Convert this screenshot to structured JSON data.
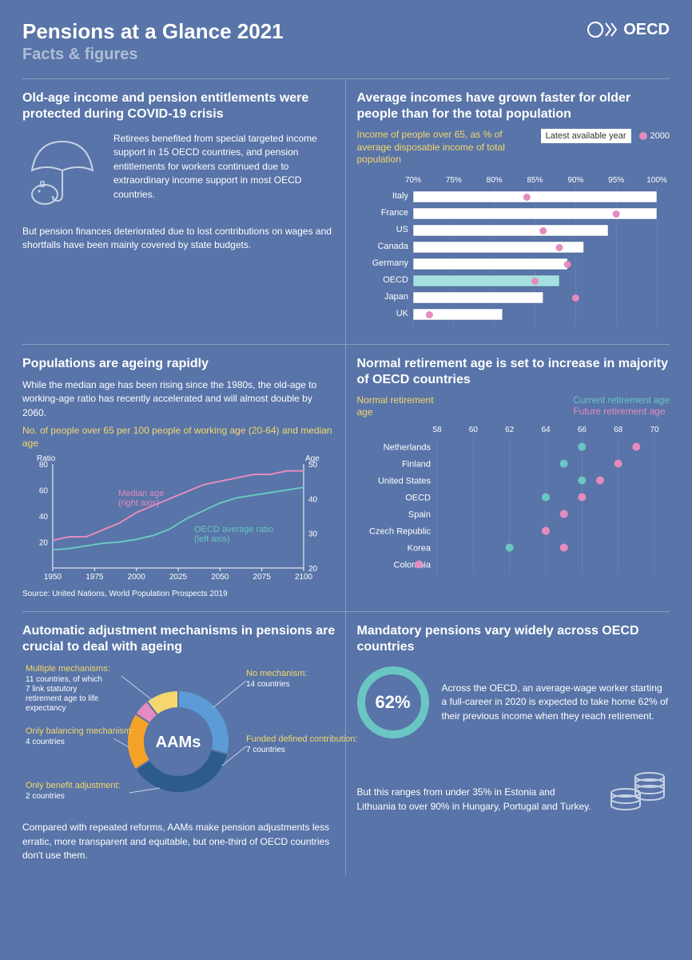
{
  "header": {
    "title": "Pensions at a Glance 2021",
    "subtitle": "Facts & figures",
    "logo_text": "OECD"
  },
  "sec1": {
    "title": "Old-age income and pension entitlements were protected during COVID-19 crisis",
    "para1": "Retirees benefited from special targeted income support in 15 OECD countries, and pension entitlements for workers continued due to extraordinary income support in most OECD countries.",
    "para2": "But pension finances deteriorated due to lost contributions on wages and shortfalls have been mainly covered by state budgets."
  },
  "sec2": {
    "title": "Average incomes have grown faster for older people than for the total population",
    "subtitle": "Income of people over 65, as % of average disposable income of total population",
    "legend_latest": "Latest available year",
    "legend_2000": "2000",
    "axis_ticks": [
      "70%",
      "75%",
      "80%",
      "85%",
      "90%",
      "95%",
      "100%"
    ],
    "axis_min": 70,
    "axis_max": 100,
    "rows": [
      {
        "label": "Italy",
        "latest": 100,
        "y2000": 84,
        "fill": "#ffffff"
      },
      {
        "label": "France",
        "latest": 100,
        "y2000": 95,
        "fill": "#ffffff"
      },
      {
        "label": "US",
        "latest": 94,
        "y2000": 86,
        "fill": "#ffffff"
      },
      {
        "label": "Canada",
        "latest": 91,
        "y2000": 88,
        "fill": "#ffffff"
      },
      {
        "label": "Germany",
        "latest": 89,
        "y2000": 89,
        "fill": "#ffffff"
      },
      {
        "label": "OECD",
        "latest": 88,
        "y2000": 85,
        "fill": "#a5e1e0"
      },
      {
        "label": "Japan",
        "latest": 86,
        "y2000": 90,
        "fill": "#ffffff"
      },
      {
        "label": "UK",
        "latest": 81,
        "y2000": 72,
        "fill": "#ffffff"
      }
    ],
    "dot_color": "#e58bbf",
    "border_color": "#4a6394"
  },
  "sec3": {
    "title": "Populations are ageing rapidly",
    "para": "While the median age has been rising since the 1980s, the old-age to working-age ratio has recently accelerated and will almost double by 2060.",
    "subtitle": "No. of people over 65 per 100 people of working age (20-64) and median age",
    "source": "Source: United Nations, World Population Prospects 2019",
    "left_label": "Ratio",
    "right_label": "Age",
    "x_ticks": [
      1950,
      1975,
      2000,
      2025,
      2050,
      2075,
      2100
    ],
    "left_ticks": [
      20,
      40,
      60,
      80
    ],
    "right_ticks": [
      20,
      30,
      40,
      50
    ],
    "line1_label": "Median age (right axis)",
    "line2_label": "OECD average ratio (left axis)",
    "line1_color": "#e58bbf",
    "line2_color": "#6ac6c2",
    "ratio_series": [
      [
        1950,
        14
      ],
      [
        1960,
        15
      ],
      [
        1970,
        17
      ],
      [
        1980,
        19
      ],
      [
        1990,
        20
      ],
      [
        2000,
        22
      ],
      [
        2010,
        25
      ],
      [
        2020,
        30
      ],
      [
        2030,
        38
      ],
      [
        2040,
        44
      ],
      [
        2050,
        50
      ],
      [
        2060,
        54
      ],
      [
        2070,
        56
      ],
      [
        2080,
        58
      ],
      [
        2090,
        60
      ],
      [
        2100,
        62
      ]
    ],
    "age_series": [
      [
        1950,
        28
      ],
      [
        1960,
        29
      ],
      [
        1970,
        29
      ],
      [
        1980,
        31
      ],
      [
        1990,
        33
      ],
      [
        2000,
        36
      ],
      [
        2010,
        38
      ],
      [
        2020,
        40
      ],
      [
        2030,
        42
      ],
      [
        2040,
        44
      ],
      [
        2050,
        45
      ],
      [
        2060,
        46
      ],
      [
        2070,
        47
      ],
      [
        2080,
        47
      ],
      [
        2090,
        48
      ],
      [
        2100,
        48
      ]
    ]
  },
  "sec4": {
    "title": "Normal retirement age is set to increase in majority of OECD countries",
    "subtitle": "Normal retirement age",
    "legend_current": "Current retirement age",
    "legend_future": "Future retirement age",
    "current_color": "#6ac6c2",
    "future_color": "#e58bbf",
    "axis_ticks": [
      58,
      60,
      62,
      64,
      66,
      68,
      70
    ],
    "axis_min": 58,
    "axis_max": 70,
    "rows": [
      {
        "label": "Netherlands",
        "current": 66,
        "future": 69
      },
      {
        "label": "Finland",
        "current": 65,
        "future": 68
      },
      {
        "label": "United States",
        "current": 66,
        "future": 67
      },
      {
        "label": "OECD",
        "current": 64,
        "future": 66
      },
      {
        "label": "Spain",
        "current": 65,
        "future": 65
      },
      {
        "label": "Czech Republic",
        "current": 64,
        "future": 64
      },
      {
        "label": "Korea",
        "current": 62,
        "future": 65
      },
      {
        "label": "Colombia",
        "current": 57,
        "future": 57
      }
    ]
  },
  "sec5": {
    "title": "Automatic adjustment mechanisms in pensions are crucial to deal with ageing",
    "center_label": "AAMs",
    "segments": [
      {
        "label": "Multiple mechanisms:",
        "count": "11 countries, of which 7 link statutory retirement age to life expectancy",
        "value": 11,
        "color": "#5c9bd5"
      },
      {
        "label": "No mechanism:",
        "count": "14 countries",
        "value": 14,
        "color": "#2d5c8a"
      },
      {
        "label": "Funded defined contribution:",
        "count": "7 countries",
        "value": 7,
        "color": "#f4a326"
      },
      {
        "label": "Only benefit adjustment:",
        "count": "2 countries",
        "value": 2,
        "color": "#e58bbf"
      },
      {
        "label": "Only balancing mechanism:",
        "count": "4 countries",
        "value": 4,
        "color": "#f5d76e"
      }
    ],
    "para": "Compared with repeated reforms, AAMs make pension adjustments less erratic, more transparent and equitable, but one-third of OECD countries don't use them."
  },
  "sec6": {
    "title": "Mandatory pensions vary widely across OECD countries",
    "big_number": "62%",
    "para1": "Across the OECD, an average-wage worker starting a full-career in 2020 is expected to take home 62% of their previous income when they reach retirement.",
    "para2": "But this ranges from under 35% in Estonia and Lithuania to over 90% in Hungary, Portugal and Turkey."
  }
}
